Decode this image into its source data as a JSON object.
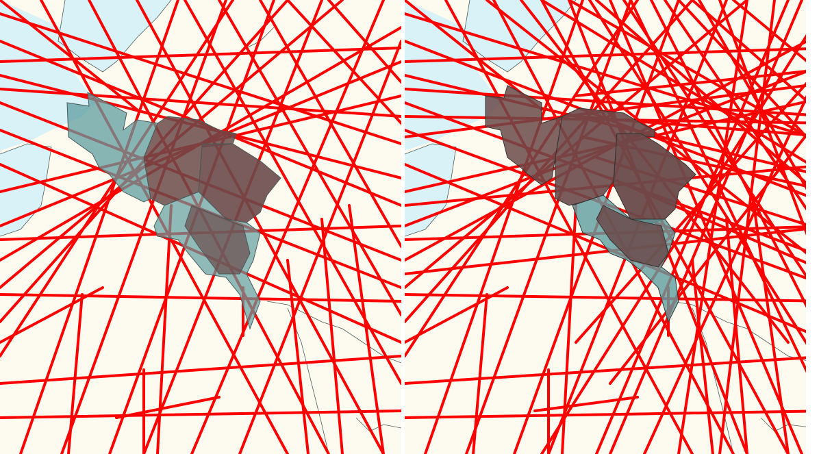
{
  "colors": {
    "land": "#fdfbef",
    "water": "#d8f2f8",
    "track": "#ff0000",
    "region_fill": "#5f9ea0",
    "overlap_fill": "#6a4a4a",
    "border": "#4a5a5a"
  },
  "panels": [
    {
      "id": "left",
      "track_density": "lower"
    },
    {
      "id": "right",
      "track_density": "higher"
    }
  ]
}
